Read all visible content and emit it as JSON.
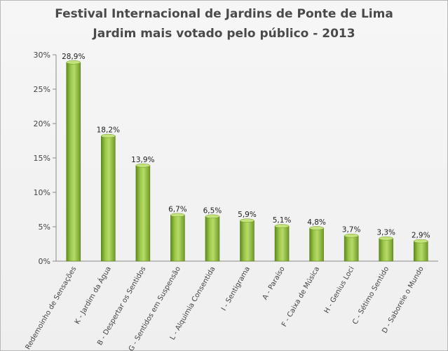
{
  "chart_data": {
    "type": "bar",
    "title": "Festival Internacional  de Jardins de Ponte de Lima",
    "subtitle": "Jardim mais votado pelo público - 2013",
    "xlabel": "",
    "ylabel": "",
    "ylim": [
      0,
      30
    ],
    "yticks": [
      "0%",
      "5%",
      "10%",
      "15%",
      "20%",
      "25%",
      "30%"
    ],
    "yticks_values": [
      0,
      5,
      10,
      15,
      20,
      25,
      30
    ],
    "grid": false,
    "legend": "none",
    "bar_color": "#8db53a",
    "categories": [
      "E - Redemoinho de Sensações",
      "K - Jardim da Água",
      "B - Despertar os Sentidos",
      "G - Sentidos em Suspensão",
      "L - Alquimia Consentida",
      "I - Sentigrama",
      "A - Paraíso",
      "F - Caixa de Música",
      "H - Genius Loci",
      "C - Sétimo Sentido",
      "D - Saboreie o Mundo"
    ],
    "values": [
      28.9,
      18.2,
      13.9,
      6.7,
      6.5,
      5.9,
      5.1,
      4.8,
      3.7,
      3.3,
      2.9
    ],
    "data_labels": [
      "28,9%",
      "18,2%",
      "13,9%",
      "6,7%",
      "6,5%",
      "5,9%",
      "5,1%",
      "4,8%",
      "3,7%",
      "3,3%",
      "2,9%"
    ]
  }
}
